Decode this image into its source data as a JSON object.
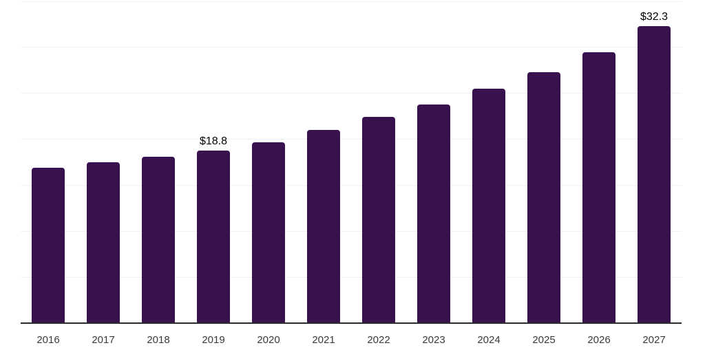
{
  "chart_data": {
    "type": "bar",
    "categories": [
      "2016",
      "2017",
      "2018",
      "2019",
      "2020",
      "2021",
      "2022",
      "2023",
      "2024",
      "2025",
      "2026",
      "2027"
    ],
    "values": [
      16.9,
      17.5,
      18.1,
      18.8,
      19.7,
      21.0,
      22.4,
      23.8,
      25.5,
      27.3,
      29.5,
      32.3
    ],
    "data_labels": [
      {
        "category": "2019",
        "text": "$18.8"
      },
      {
        "category": "2027",
        "text": "$32.3"
      }
    ],
    "title": "",
    "xlabel": "",
    "ylabel": "",
    "ylim": [
      0,
      35
    ],
    "gridline_step": 5,
    "grid": true,
    "legend": "none",
    "y_tick_labels_visible": false,
    "colors": {
      "bar": "#38124F",
      "background": "#ffffff",
      "gridline": "#f0f0f0",
      "axis_line": "#2b2b2b",
      "tick_label": "#3a3a3a",
      "data_label": "#000000"
    }
  }
}
